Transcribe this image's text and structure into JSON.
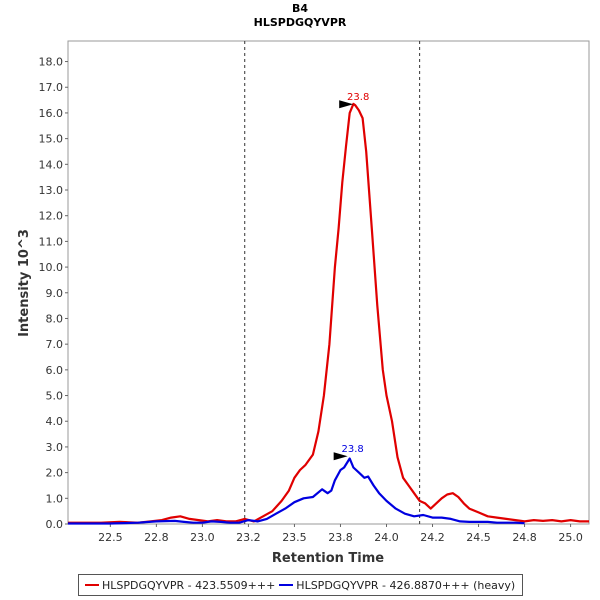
{
  "chart_data": {
    "type": "line",
    "title": "B4",
    "subtitle": "HLSPDGQYVPR",
    "xlabel": "Retention Time",
    "ylabel": "Intensity 10^3",
    "xlim": [
      22.27,
      25.1
    ],
    "ylim": [
      0,
      18.8
    ],
    "xticks": [
      "22.5",
      "22.8",
      "23.0",
      "23.2",
      "23.5",
      "23.8",
      "24.0",
      "24.2",
      "24.5",
      "24.8",
      "25.0"
    ],
    "xtick_values": [
      22.5,
      22.75,
      23.0,
      23.25,
      23.5,
      23.75,
      24.0,
      24.25,
      24.5,
      24.75,
      25.0
    ],
    "yticks": [
      "0.0",
      "1.0",
      "2.0",
      "3.0",
      "4.0",
      "5.0",
      "6.0",
      "7.0",
      "8.0",
      "9.0",
      "10.0",
      "11.0",
      "12.0",
      "13.0",
      "14.0",
      "15.0",
      "16.0",
      "17.0",
      "18.0"
    ],
    "ytick_values": [
      0,
      1,
      2,
      3,
      4,
      5,
      6,
      7,
      8,
      9,
      10,
      11,
      12,
      13,
      14,
      15,
      16,
      17,
      18
    ],
    "integration_bounds": [
      23.23,
      24.18
    ],
    "grid": false,
    "legend_placement": "bottom",
    "series": [
      {
        "name": "HLSPDGQYVPR - 423.5509+++",
        "color": "#e00000",
        "peak_label": "23.8",
        "peak": [
          23.83,
          16.3
        ],
        "x": [
          22.27,
          22.45,
          22.55,
          22.65,
          22.72,
          22.78,
          22.83,
          22.88,
          22.93,
          22.98,
          23.03,
          23.08,
          23.13,
          23.18,
          23.23,
          23.28,
          23.33,
          23.38,
          23.43,
          23.47,
          23.5,
          23.53,
          23.56,
          23.6,
          23.63,
          23.66,
          23.69,
          23.72,
          23.74,
          23.76,
          23.78,
          23.8,
          23.82,
          23.83,
          23.85,
          23.87,
          23.89,
          23.92,
          23.95,
          23.98,
          24.0,
          24.03,
          24.06,
          24.09,
          24.12,
          24.15,
          24.18,
          24.21,
          24.24,
          24.27,
          24.3,
          24.33,
          24.36,
          24.39,
          24.42,
          24.45,
          24.5,
          24.55,
          24.6,
          24.65,
          24.7,
          24.75,
          24.8,
          24.85,
          24.9,
          24.95,
          25.0,
          25.05,
          25.1
        ],
        "values": [
          0.05,
          0.05,
          0.08,
          0.05,
          0.1,
          0.15,
          0.25,
          0.3,
          0.2,
          0.15,
          0.1,
          0.15,
          0.1,
          0.1,
          0.2,
          0.1,
          0.3,
          0.5,
          0.9,
          1.3,
          1.8,
          2.1,
          2.3,
          2.7,
          3.6,
          5.0,
          7.0,
          10.0,
          11.5,
          13.3,
          14.7,
          16.0,
          16.35,
          16.3,
          16.1,
          15.8,
          14.5,
          11.5,
          8.5,
          6.0,
          5.0,
          4.0,
          2.6,
          1.8,
          1.5,
          1.2,
          0.9,
          0.8,
          0.6,
          0.8,
          1.0,
          1.15,
          1.2,
          1.05,
          0.8,
          0.6,
          0.45,
          0.3,
          0.25,
          0.2,
          0.15,
          0.1,
          0.15,
          0.12,
          0.15,
          0.1,
          0.15,
          0.1,
          0.1
        ]
      },
      {
        "name": "HLSPDGQYVPR - 426.8870+++ (heavy)",
        "color": "#0000e0",
        "peak_label": "23.8",
        "peak": [
          23.8,
          2.6
        ],
        "x": [
          22.27,
          22.5,
          22.65,
          22.75,
          22.85,
          22.9,
          22.95,
          23.0,
          23.05,
          23.1,
          23.15,
          23.2,
          23.25,
          23.3,
          23.35,
          23.4,
          23.45,
          23.5,
          23.55,
          23.6,
          23.65,
          23.68,
          23.7,
          23.72,
          23.75,
          23.77,
          23.8,
          23.82,
          23.85,
          23.88,
          23.9,
          23.93,
          23.96,
          24.0,
          24.05,
          24.1,
          24.15,
          24.2,
          24.25,
          24.3,
          24.35,
          24.4,
          24.45,
          24.5,
          24.55,
          24.6,
          24.65,
          24.7,
          24.75
        ],
        "values": [
          0.02,
          0.02,
          0.05,
          0.1,
          0.12,
          0.08,
          0.05,
          0.05,
          0.1,
          0.08,
          0.05,
          0.05,
          0.15,
          0.1,
          0.2,
          0.4,
          0.6,
          0.85,
          1.0,
          1.05,
          1.35,
          1.2,
          1.3,
          1.7,
          2.1,
          2.2,
          2.55,
          2.2,
          2.0,
          1.8,
          1.85,
          1.5,
          1.2,
          0.9,
          0.6,
          0.4,
          0.3,
          0.35,
          0.25,
          0.25,
          0.2,
          0.1,
          0.08,
          0.08,
          0.08,
          0.05,
          0.05,
          0.05,
          0.03
        ]
      }
    ]
  }
}
